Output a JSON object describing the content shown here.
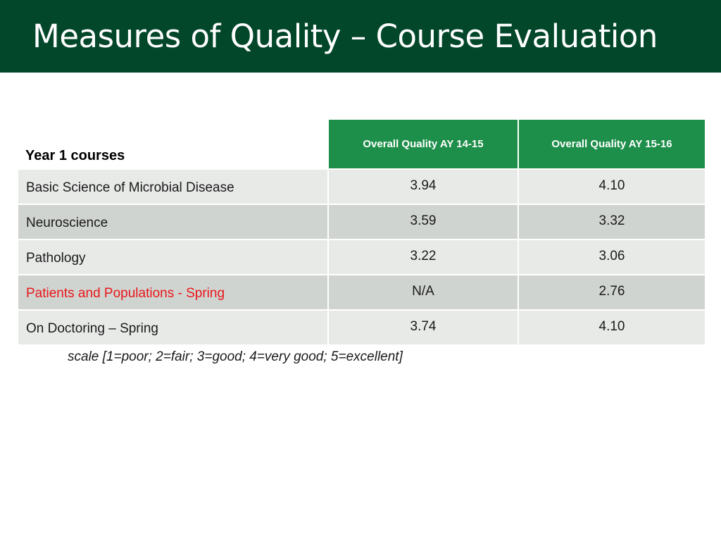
{
  "slide": {
    "title": "Measures of Quality – Course Evaluation",
    "scale_note": "scale [1=poor; 2=fair; 3=good; 4=very good; 5=excellent]"
  },
  "colors": {
    "title_bar": "#03472b",
    "header_cell": "#1e8f4a",
    "row_light": "#e8eae8",
    "row_dark": "#d0d4d0",
    "highlight_text": "#e8161b"
  },
  "table": {
    "corner_label": "Year 1 courses",
    "headers": [
      "Overall Quality AY 14-15",
      "Overall Quality AY 15-16"
    ],
    "rows": [
      {
        "course": "Basic Science of Microbial Disease",
        "ay1415": "3.94",
        "ay1516": "4.10",
        "highlight": false
      },
      {
        "course": "Neuroscience",
        "ay1415": "3.59",
        "ay1516": "3.32",
        "highlight": false
      },
      {
        "course": "Pathology",
        "ay1415": "3.22",
        "ay1516": "3.06",
        "highlight": false
      },
      {
        "course": "Patients and Populations - Spring",
        "ay1415": "N/A",
        "ay1516": "2.76",
        "highlight": true
      },
      {
        "course": "On Doctoring – Spring",
        "ay1415": "3.74",
        "ay1516": "4.10",
        "highlight": false
      }
    ]
  }
}
